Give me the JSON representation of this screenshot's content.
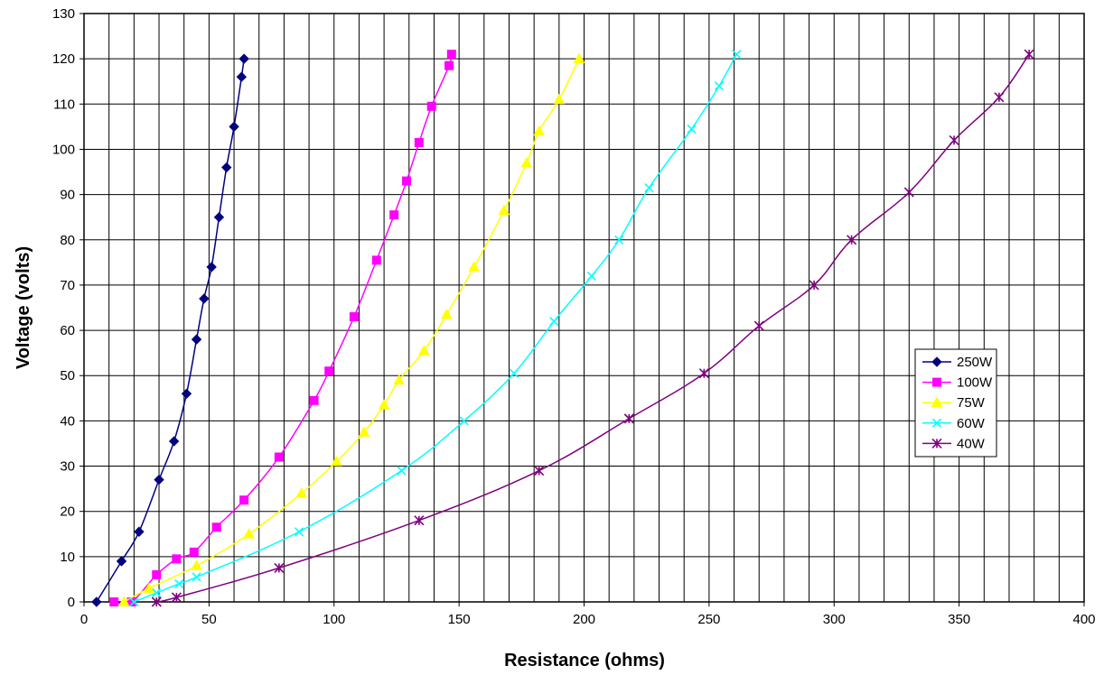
{
  "chart_data": {
    "type": "line",
    "title": "",
    "xlabel": "Resistance (ohms)",
    "ylabel": "Voltage (volts)",
    "xlim": [
      0,
      400
    ],
    "ylim": [
      0,
      130
    ],
    "xticks": [
      0,
      50,
      100,
      150,
      200,
      250,
      300,
      350,
      400
    ],
    "yticks": [
      0,
      10,
      20,
      30,
      40,
      50,
      60,
      70,
      80,
      90,
      100,
      110,
      120,
      130
    ],
    "grid": true,
    "grid_minor_x": 10,
    "legend_position": "right",
    "series": [
      {
        "name": "250W",
        "color": "#000080",
        "marker": "diamond",
        "points": [
          [
            5,
            0
          ],
          [
            15,
            9
          ],
          [
            22,
            15.5
          ],
          [
            30,
            27
          ],
          [
            36,
            35.5
          ],
          [
            41,
            46
          ],
          [
            45,
            58
          ],
          [
            48,
            67
          ],
          [
            51,
            74
          ],
          [
            54,
            85
          ],
          [
            57,
            96
          ],
          [
            60,
            105
          ],
          [
            63,
            116
          ],
          [
            64,
            120
          ]
        ]
      },
      {
        "name": "100W",
        "color": "#ff00ff",
        "marker": "square",
        "points": [
          [
            12,
            0
          ],
          [
            19,
            0
          ],
          [
            29,
            6
          ],
          [
            37,
            9.5
          ],
          [
            44,
            11
          ],
          [
            53,
            16.5
          ],
          [
            64,
            22.5
          ],
          [
            78,
            32
          ],
          [
            92,
            44.5
          ],
          [
            98,
            51
          ],
          [
            108,
            63
          ],
          [
            117,
            75.5
          ],
          [
            124,
            85.5
          ],
          [
            129,
            93
          ],
          [
            134,
            101.5
          ],
          [
            139,
            109.5
          ],
          [
            146,
            118.5
          ],
          [
            147,
            121
          ]
        ]
      },
      {
        "name": "75W",
        "color": "#ffff00",
        "marker": "triangle",
        "points": [
          [
            16,
            0
          ],
          [
            26,
            3
          ],
          [
            45,
            8
          ],
          [
            66,
            15
          ],
          [
            87,
            24
          ],
          [
            101,
            31
          ],
          [
            112,
            37.5
          ],
          [
            120,
            43.5
          ],
          [
            126,
            49
          ],
          [
            136,
            55.5
          ],
          [
            145,
            63.5
          ],
          [
            156,
            74
          ],
          [
            168,
            86.5
          ],
          [
            177,
            97
          ],
          [
            182,
            104
          ],
          [
            190,
            111
          ],
          [
            198,
            120
          ]
        ]
      },
      {
        "name": "60W",
        "color": "#00ffff",
        "marker": "x",
        "points": [
          [
            20,
            0
          ],
          [
            29,
            2
          ],
          [
            38,
            4
          ],
          [
            45,
            5.5
          ],
          [
            86,
            15.5
          ],
          [
            127,
            29
          ],
          [
            152,
            40
          ],
          [
            172,
            50.5
          ],
          [
            188,
            62
          ],
          [
            203,
            72
          ],
          [
            214,
            80
          ],
          [
            226,
            91.5
          ],
          [
            243,
            104.5
          ],
          [
            254,
            114
          ],
          [
            261,
            121
          ]
        ]
      },
      {
        "name": "40W",
        "color": "#800080",
        "marker": "star",
        "points": [
          [
            29,
            0
          ],
          [
            37,
            1
          ],
          [
            78,
            7.5
          ],
          [
            134,
            18
          ],
          [
            182,
            29
          ],
          [
            218,
            40.5
          ],
          [
            248,
            50.5
          ],
          [
            270,
            61
          ],
          [
            292,
            70
          ],
          [
            307,
            80
          ],
          [
            330,
            90.5
          ],
          [
            348,
            102
          ],
          [
            366,
            111.5
          ],
          [
            378,
            121
          ]
        ]
      }
    ]
  }
}
